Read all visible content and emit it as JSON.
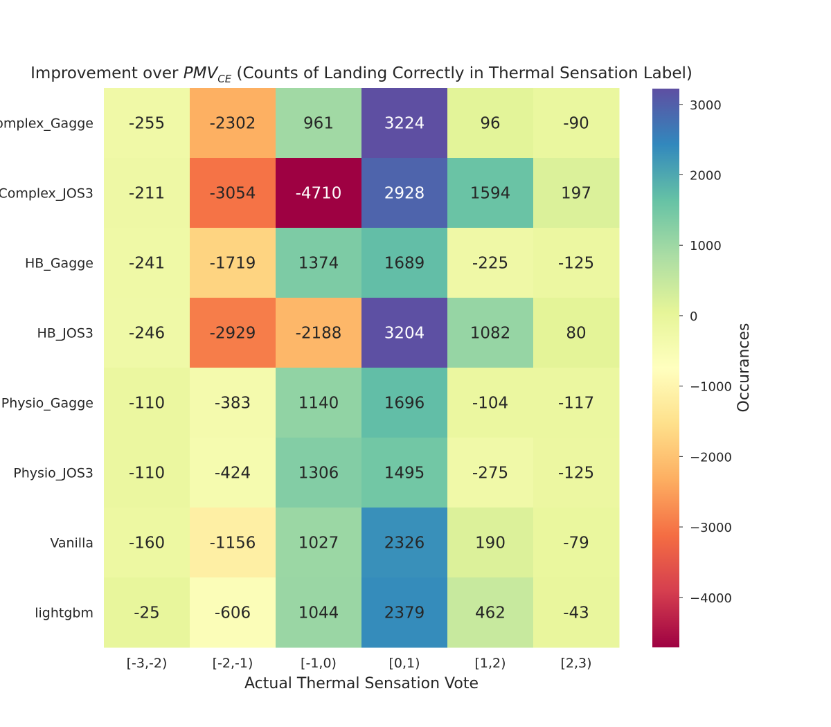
{
  "chart_data": {
    "type": "heatmap",
    "title_prefix": "Improvement over ",
    "title_math_main": "PMV",
    "title_math_sub": "CE",
    "title_suffix": " (Counts of Landing Correctly in Thermal Sensation Label)",
    "xlabel": "Actual Thermal Sensation Vote",
    "ylabel": "",
    "colorbar_label": "Occurances",
    "colormap": "Spectral",
    "vmin": -4710,
    "vmax": 3224,
    "colorbar_ticks": [
      3000,
      2000,
      1000,
      0,
      -1000,
      -2000,
      -3000,
      -4000
    ],
    "colorbar_tick_labels": [
      "3000",
      "2000",
      "1000",
      "0",
      "−1000",
      "−2000",
      "−3000",
      "−4000"
    ],
    "x_categories": [
      "[-3,-2)",
      "[-2,-1)",
      "[-1,0)",
      "[0,1)",
      "[1,2)",
      "[2,3)"
    ],
    "y_categories": [
      "omplex_Gagge",
      "Complex_JOS3",
      "HB_Gagge",
      "HB_JOS3",
      "Physio_Gagge",
      "Physio_JOS3",
      "Vanilla",
      "lightgbm"
    ],
    "values": [
      [
        -255,
        -2302,
        961,
        3224,
        96,
        -90
      ],
      [
        -211,
        -3054,
        -4710,
        2928,
        1594,
        197
      ],
      [
        -241,
        -1719,
        1374,
        1689,
        -225,
        -125
      ],
      [
        -246,
        -2929,
        -2188,
        3204,
        1082,
        80
      ],
      [
        -110,
        -383,
        1140,
        1696,
        -104,
        -117
      ],
      [
        -110,
        -424,
        1306,
        1495,
        -275,
        -125
      ],
      [
        -160,
        -1156,
        1027,
        2326,
        190,
        -79
      ],
      [
        -25,
        -606,
        1044,
        2379,
        462,
        -43
      ]
    ]
  }
}
